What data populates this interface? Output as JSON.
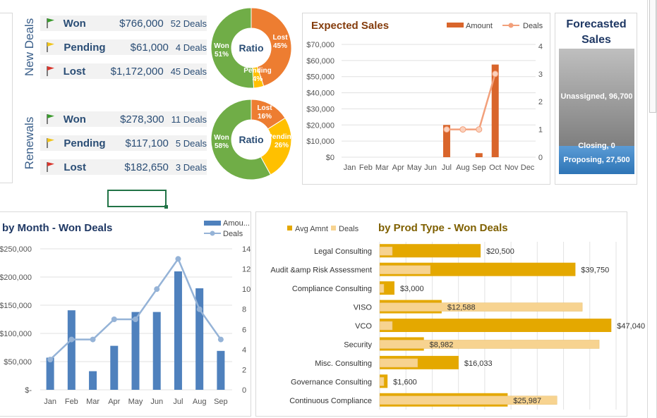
{
  "groups": {
    "new_deals": {
      "label": "New Deals",
      "rows": [
        {
          "status": "Won",
          "amount": "$766,000",
          "deals": "52 Deals",
          "flag_color": "#3a9a2d"
        },
        {
          "status": "Pending",
          "amount": "$61,000",
          "deals": "4 Deals",
          "flag_color": "#f0c419"
        },
        {
          "status": "Lost",
          "amount": "$1,172,000",
          "deals": "45 Deals",
          "flag_color": "#d9352c"
        }
      ],
      "donut": {
        "center": "Ratio",
        "slices": [
          {
            "name": "Lost",
            "pct": "45%",
            "value": 45,
            "color": "#ed7d31"
          },
          {
            "name": "Pending",
            "pct": "4%",
            "value": 4,
            "color": "#ffc000"
          },
          {
            "name": "Won",
            "pct": "51%",
            "value": 51,
            "color": "#70ad47"
          }
        ]
      }
    },
    "renewals": {
      "label": "Renewals",
      "rows": [
        {
          "status": "Won",
          "amount": "$278,300",
          "deals": "11 Deals",
          "flag_color": "#3a9a2d"
        },
        {
          "status": "Pending",
          "amount": "$117,100",
          "deals": "5 Deals",
          "flag_color": "#f0c419"
        },
        {
          "status": "Lost",
          "amount": "$182,650",
          "deals": "3 Deals",
          "flag_color": "#d9352c"
        }
      ],
      "donut": {
        "center": "Ratio",
        "slices": [
          {
            "name": "Lost",
            "pct": "16%",
            "value": 16,
            "color": "#ed7d31"
          },
          {
            "name": "Pending",
            "pct": "26%",
            "value": 26,
            "color": "#ffc000"
          },
          {
            "name": "Won",
            "pct": "58%",
            "value": 58,
            "color": "#70ad47"
          }
        ]
      }
    }
  },
  "forecast": {
    "title": "Forecasted Sales",
    "segments": [
      {
        "label": "Unassigned, 96,700",
        "value": 96700
      },
      {
        "label": "Closing, 0",
        "value": 0
      },
      {
        "label": "Proposing, 27,500",
        "value": 27500
      }
    ]
  },
  "chart_data": [
    {
      "id": "expected-sales",
      "type": "bar",
      "title": "Expected Sales",
      "categories": [
        "Jan",
        "Feb",
        "Mar",
        "Apr",
        "May",
        "Jun",
        "Jul",
        "Aug",
        "Sep",
        "Oct",
        "Nov",
        "Dec"
      ],
      "series": [
        {
          "name": "Amount",
          "values": [
            0,
            0,
            0,
            0,
            0,
            0,
            20000,
            0,
            2500,
            57500,
            0,
            0
          ],
          "color": "#d9652b"
        },
        {
          "name": "Deals",
          "values": [
            null,
            null,
            null,
            null,
            null,
            null,
            1,
            1,
            1,
            3,
            null,
            null
          ],
          "color": "#f2a07b"
        }
      ],
      "y_ticks": [
        "$0",
        "$10,000",
        "$20,000",
        "$30,000",
        "$40,000",
        "$50,000",
        "$60,000",
        "$70,000"
      ],
      "y2_ticks": [
        "0",
        "1",
        "2",
        "3",
        "4"
      ],
      "ylim": [
        0,
        70000
      ],
      "y2lim": [
        0,
        4
      ],
      "legend": "top-right"
    },
    {
      "id": "by-month",
      "type": "bar",
      "title": "by Month - Won Deals",
      "categories": [
        "Jan",
        "Feb",
        "Mar",
        "Apr",
        "May",
        "Jun",
        "Jul",
        "Aug",
        "Sep"
      ],
      "series": [
        {
          "name": "Amou...",
          "values": [
            57000,
            141000,
            33000,
            78000,
            138000,
            138000,
            210000,
            180000,
            69000
          ],
          "color": "#4f81bd"
        },
        {
          "name": "Deals",
          "values": [
            3,
            5,
            5,
            7,
            7,
            10,
            13,
            8,
            5
          ],
          "color": "#95b3d7"
        }
      ],
      "y_ticks": [
        "$-",
        "$50,000",
        "$100,000",
        "$150,000",
        "$200,000",
        "$250,000"
      ],
      "y2_ticks": [
        "0",
        "2",
        "4",
        "6",
        "8",
        "10",
        "12",
        "14"
      ],
      "ylim": [
        0,
        250000
      ],
      "y2lim": [
        0,
        14
      ],
      "legend": "top-right"
    },
    {
      "id": "by-prod-type",
      "type": "bar",
      "orientation": "horizontal",
      "title": "by Prod Type - Won Deals",
      "categories": [
        "Legal Consulting",
        "Audit &amp Risk Assessment",
        "Compliance Consulting",
        "VISO",
        "VCO",
        "Security",
        "Misc. Consulting",
        "Governance Consulting",
        "Continuous Compliance"
      ],
      "series": [
        {
          "name": "Avg Amnt",
          "values": [
            20500,
            39750,
            3000,
            12588,
            47040,
            8982,
            16033,
            1600,
            25987
          ],
          "color": "#e4a800"
        },
        {
          "name": "Deals",
          "values": [
            3,
            12,
            1,
            48,
            3,
            52,
            9,
            1,
            42
          ],
          "color": "#f7d390"
        }
      ],
      "value_labels": [
        "$20,500",
        "$39,750",
        "$3,000",
        "$12,588",
        "$47,040",
        "$8,982",
        "$16,033",
        "$1,600",
        "$25,987"
      ],
      "xlim": [
        0,
        48000
      ],
      "deals_max": 56,
      "legend": "top-left"
    }
  ]
}
